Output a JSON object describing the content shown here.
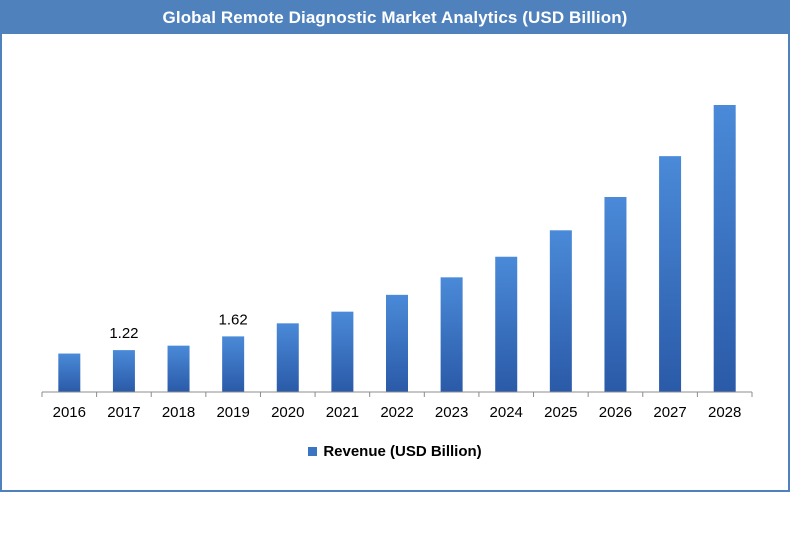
{
  "title": "Global Remote Diagnostic Market Analytics (USD Billion)",
  "colors": {
    "accent": "#4f81bd",
    "bar_top": "#4a8ad8",
    "bar_bottom": "#2a5aa8"
  },
  "chart_data": {
    "type": "bar",
    "title": "Global Remote Diagnostic Market Analytics (USD Billion)",
    "categories": [
      "2016",
      "2017",
      "2018",
      "2019",
      "2020",
      "2021",
      "2022",
      "2023",
      "2024",
      "2025",
      "2026",
      "2027",
      "2028"
    ],
    "series": [
      {
        "name": "Revenue (USD Billion)",
        "values": [
          1.12,
          1.22,
          1.35,
          1.62,
          2.0,
          2.34,
          2.83,
          3.34,
          3.94,
          4.71,
          5.68,
          6.87,
          8.36
        ]
      }
    ],
    "data_labels": {
      "2017": "1.22",
      "2019": "1.62"
    },
    "ylim": [
      0,
      8.36
    ],
    "xlabel": "",
    "ylabel": "",
    "grid": false,
    "legend": "bottom"
  }
}
